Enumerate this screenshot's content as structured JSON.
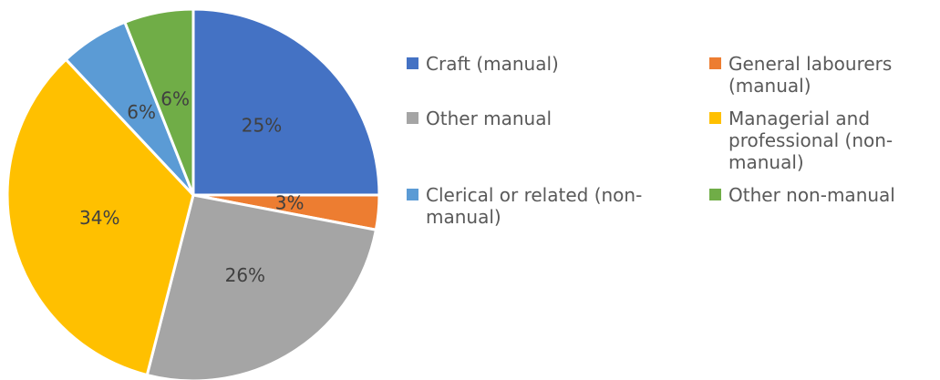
{
  "chart_data": {
    "type": "pie",
    "categories": [
      "Craft (manual)",
      "General labourers (manual)",
      "Other manual",
      "Managerial and professional (non-manual)",
      "Clerical or related (non-manual)",
      "Other non-manual"
    ],
    "values": [
      25,
      3,
      26,
      34,
      6,
      6
    ],
    "value_labels": [
      "25%",
      "3%",
      "26%",
      "34%",
      "6%",
      "6%"
    ],
    "colors": [
      "#4472c4",
      "#ed7d31",
      "#a5a5a5",
      "#ffc000",
      "#5b9bd5",
      "#70ad47"
    ]
  }
}
